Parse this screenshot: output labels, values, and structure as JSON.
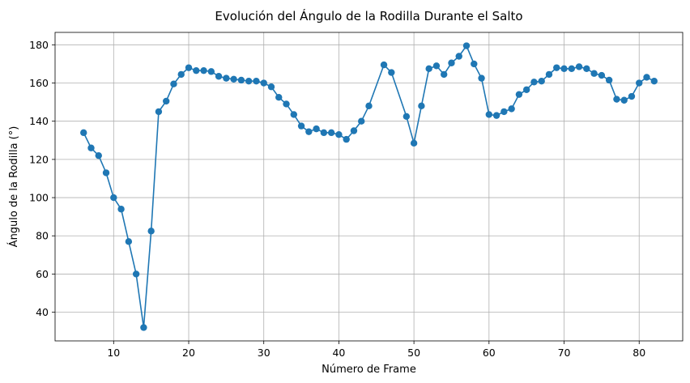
{
  "chart_data": {
    "type": "line",
    "title": "Evolución del Ángulo de la Rodilla Durante el Salto",
    "xlabel": "Número de Frame",
    "ylabel": "Ángulo de la Rodilla (°)",
    "xlim": [
      2.2,
      85.8
    ],
    "ylim": [
      25,
      186.5
    ],
    "xticks": [
      10,
      20,
      30,
      40,
      50,
      60,
      70,
      80
    ],
    "yticks": [
      40,
      60,
      80,
      100,
      120,
      140,
      160,
      180
    ],
    "grid": true,
    "series_color": "#1f77b4",
    "markers": true,
    "x": [
      6,
      7,
      8,
      9,
      10,
      11,
      12,
      13,
      14,
      15,
      16,
      17,
      18,
      19,
      20,
      21,
      22,
      23,
      24,
      25,
      26,
      27,
      28,
      29,
      30,
      31,
      32,
      33,
      34,
      35,
      36,
      37,
      38,
      39,
      40,
      41,
      42,
      43,
      44,
      46,
      47,
      49,
      50,
      51,
      52,
      53,
      54,
      55,
      56,
      57,
      58,
      59,
      60,
      61,
      62,
      63,
      64,
      65,
      66,
      67,
      68,
      69,
      70,
      71,
      72,
      73,
      74,
      75,
      76,
      77,
      78,
      79,
      80,
      81,
      82
    ],
    "y": [
      134,
      126,
      122,
      113,
      100,
      94,
      77,
      60,
      32,
      82.5,
      145,
      150.5,
      159.5,
      164.5,
      168,
      166.5,
      166.5,
      166,
      163.5,
      162.5,
      162,
      161.5,
      161,
      161,
      160,
      158,
      152.5,
      149,
      143.5,
      137.5,
      134.5,
      136,
      134,
      134,
      133,
      130.5,
      135,
      140,
      148,
      169.5,
      165.5,
      142.5,
      128.5,
      148,
      167.5,
      169,
      164.5,
      170.5,
      174,
      179.5,
      170,
      162.5,
      143.5,
      143,
      145,
      146.5,
      154,
      156.5,
      160.5,
      161,
      164.5,
      168,
      167.5,
      167.5,
      168.5,
      167.5,
      165,
      164,
      161.5,
      151.5,
      151,
      153,
      160,
      163,
      161
    ]
  }
}
